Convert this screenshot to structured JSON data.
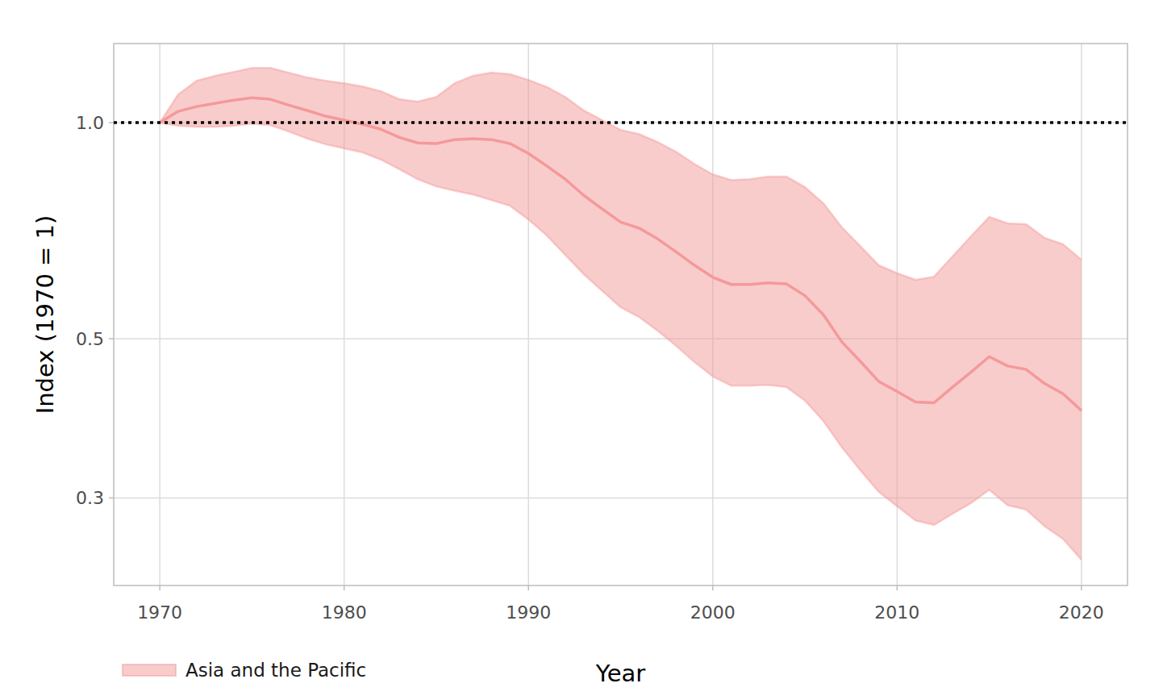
{
  "chart_data": {
    "type": "line",
    "x_label": "Year",
    "y_label": "Index (1970 = 1)",
    "log": "y",
    "grid": true,
    "legend": "bottom",
    "reference_line": 1,
    "x": [
      1970,
      1971,
      1972,
      1973,
      1974,
      1975,
      1976,
      1977,
      1978,
      1979,
      1980,
      1981,
      1982,
      1983,
      1984,
      1985,
      1986,
      1987,
      1988,
      1989,
      1990,
      1991,
      1992,
      1993,
      1994,
      1995,
      1996,
      1997,
      1998,
      1999,
      2000,
      2001,
      2002,
      2003,
      2004,
      2005,
      2006,
      2007,
      2008,
      2009,
      2010,
      2011,
      2012,
      2013,
      2014,
      2015,
      2016,
      2017,
      2018,
      2019,
      2020
    ],
    "xlim": [
      1967.5,
      2022.5
    ],
    "xticks": [
      1970,
      1980,
      1990,
      2000,
      2010,
      2020
    ],
    "ylim": [
      0.2265,
      1.289
    ],
    "yticks": [
      {
        "value": 0.3,
        "label": "0.3"
      },
      {
        "value": 0.5,
        "label": "0.5"
      },
      {
        "value": 1,
        "label": "1.0"
      }
    ],
    "series": [
      {
        "name": "Asia and the Pacific",
        "color": "#f4999a",
        "values": [
          1.0,
          1.037,
          1.053,
          1.064,
          1.075,
          1.083,
          1.078,
          1.058,
          1.04,
          1.021,
          1.008,
          0.995,
          0.979,
          0.954,
          0.937,
          0.935,
          0.947,
          0.95,
          0.947,
          0.935,
          0.906,
          0.87,
          0.834,
          0.792,
          0.758,
          0.727,
          0.713,
          0.689,
          0.661,
          0.633,
          0.609,
          0.595,
          0.595,
          0.598,
          0.596,
          0.574,
          0.54,
          0.495,
          0.465,
          0.436,
          0.422,
          0.408,
          0.407,
          0.428,
          0.449,
          0.472,
          0.458,
          0.453,
          0.433,
          0.419,
          0.397
        ],
        "upper": [
          1.0,
          1.095,
          1.144,
          1.162,
          1.177,
          1.192,
          1.192,
          1.174,
          1.156,
          1.144,
          1.135,
          1.123,
          1.106,
          1.078,
          1.07,
          1.086,
          1.135,
          1.162,
          1.174,
          1.168,
          1.147,
          1.121,
          1.086,
          1.04,
          1.008,
          0.977,
          0.964,
          0.94,
          0.911,
          0.876,
          0.847,
          0.832,
          0.834,
          0.841,
          0.841,
          0.813,
          0.772,
          0.715,
          0.673,
          0.633,
          0.617,
          0.604,
          0.61,
          0.651,
          0.694,
          0.739,
          0.724,
          0.722,
          0.691,
          0.677,
          0.644
        ],
        "lower": [
          1.0,
          0.99,
          0.987,
          0.987,
          0.99,
          0.997,
          0.992,
          0.972,
          0.95,
          0.933,
          0.921,
          0.909,
          0.888,
          0.861,
          0.834,
          0.815,
          0.804,
          0.794,
          0.78,
          0.766,
          0.733,
          0.696,
          0.654,
          0.615,
          0.583,
          0.553,
          0.536,
          0.513,
          0.489,
          0.464,
          0.443,
          0.43,
          0.43,
          0.431,
          0.428,
          0.41,
          0.384,
          0.353,
          0.328,
          0.306,
          0.292,
          0.279,
          0.275,
          0.285,
          0.295,
          0.308,
          0.293,
          0.289,
          0.274,
          0.263,
          0.246
        ]
      }
    ]
  }
}
